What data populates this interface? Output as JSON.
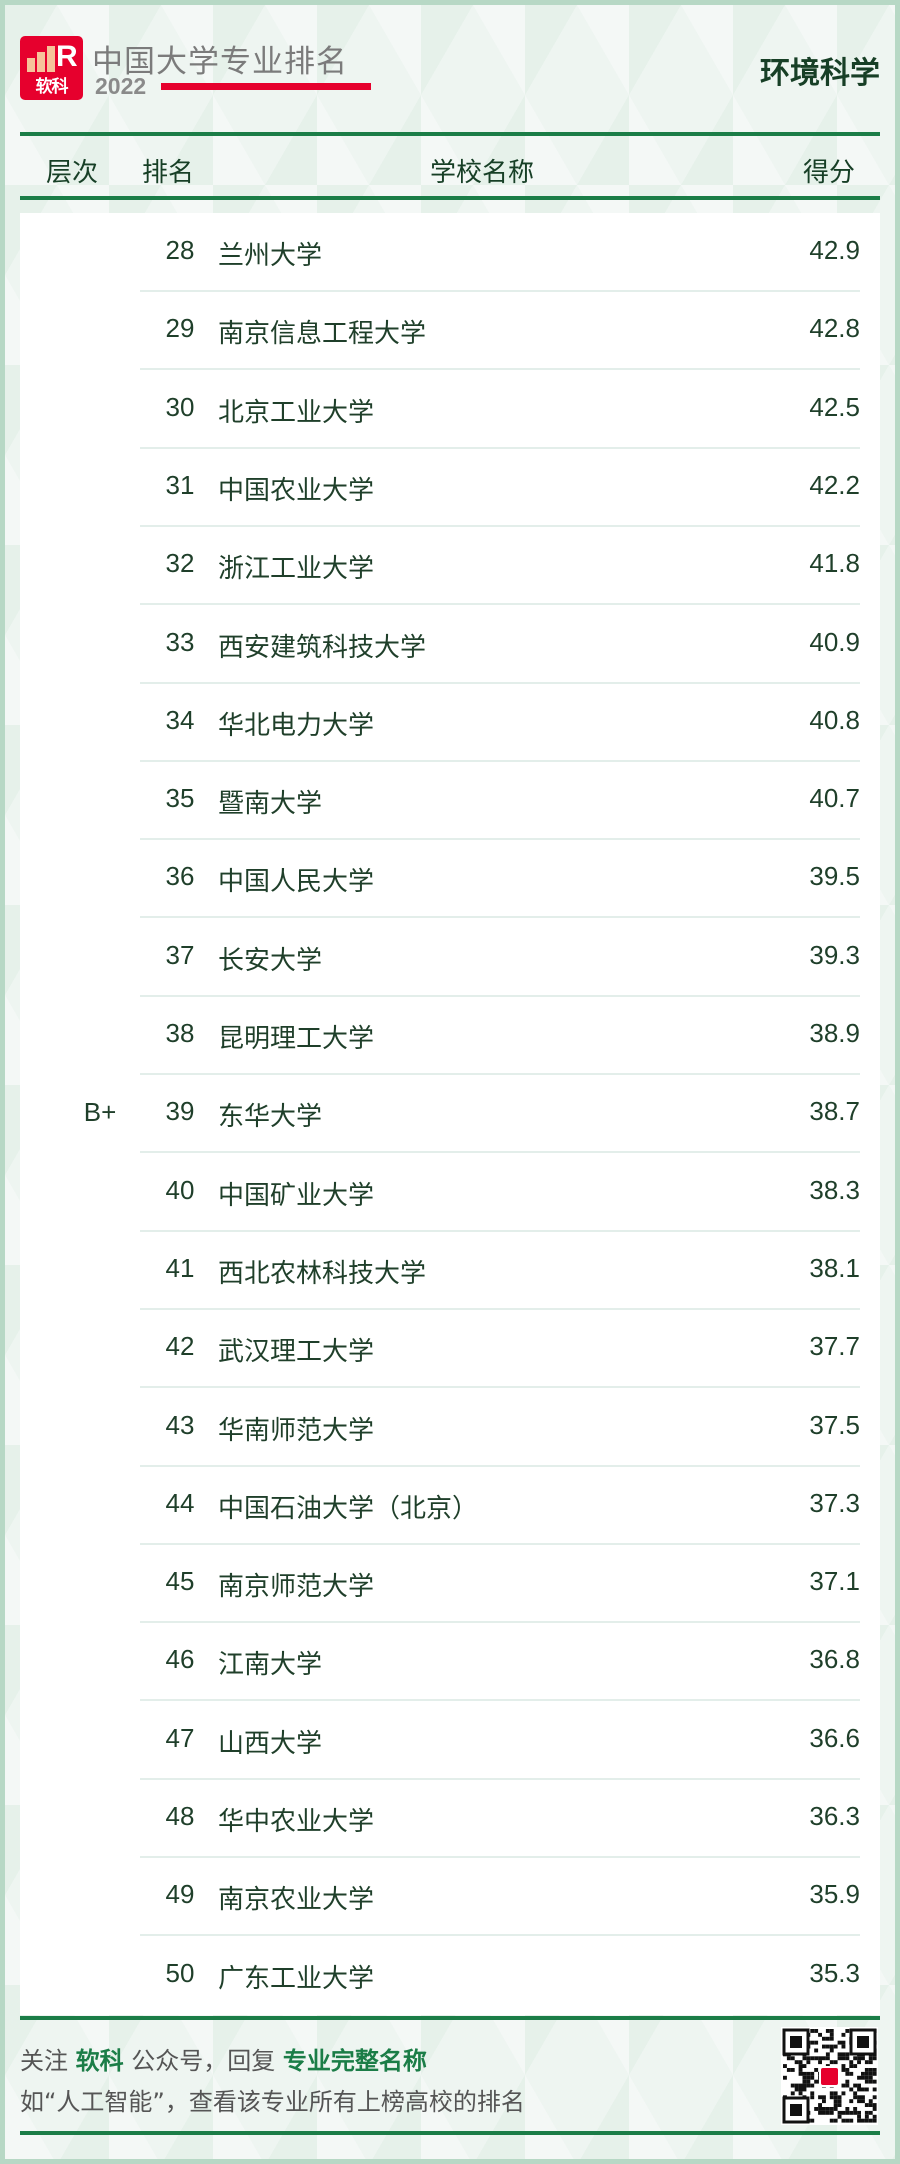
{
  "header": {
    "logo_text": "软科",
    "title": "中国大学专业排名",
    "year": "2022",
    "major": "环境科学"
  },
  "columns": {
    "tier": "层次",
    "rank": "排名",
    "school": "学校名称",
    "score": "得分"
  },
  "tier": "B+",
  "rows": [
    {
      "rank": "28",
      "name": "兰州大学",
      "score": "42.9"
    },
    {
      "rank": "29",
      "name": "南京信息工程大学",
      "score": "42.8"
    },
    {
      "rank": "30",
      "name": "北京工业大学",
      "score": "42.5"
    },
    {
      "rank": "31",
      "name": "中国农业大学",
      "score": "42.2"
    },
    {
      "rank": "32",
      "name": "浙江工业大学",
      "score": "41.8"
    },
    {
      "rank": "33",
      "name": "西安建筑科技大学",
      "score": "40.9"
    },
    {
      "rank": "34",
      "name": "华北电力大学",
      "score": "40.8"
    },
    {
      "rank": "35",
      "name": "暨南大学",
      "score": "40.7"
    },
    {
      "rank": "36",
      "name": "中国人民大学",
      "score": "39.5"
    },
    {
      "rank": "37",
      "name": "长安大学",
      "score": "39.3"
    },
    {
      "rank": "38",
      "name": "昆明理工大学",
      "score": "38.9"
    },
    {
      "rank": "39",
      "name": "东华大学",
      "score": "38.7"
    },
    {
      "rank": "40",
      "name": "中国矿业大学",
      "score": "38.3"
    },
    {
      "rank": "41",
      "name": "西北农林科技大学",
      "score": "38.1"
    },
    {
      "rank": "42",
      "name": "武汉理工大学",
      "score": "37.7"
    },
    {
      "rank": "43",
      "name": "华南师范大学",
      "score": "37.5"
    },
    {
      "rank": "44",
      "name": "中国石油大学（北京）",
      "score": "37.3"
    },
    {
      "rank": "45",
      "name": "南京师范大学",
      "score": "37.1"
    },
    {
      "rank": "46",
      "name": "江南大学",
      "score": "36.8"
    },
    {
      "rank": "47",
      "name": "山西大学",
      "score": "36.6"
    },
    {
      "rank": "48",
      "name": "华中农业大学",
      "score": "36.3"
    },
    {
      "rank": "49",
      "name": "南京农业大学",
      "score": "35.9"
    },
    {
      "rank": "50",
      "name": "广东工业大学",
      "score": "35.3"
    }
  ],
  "footer": {
    "line1": {
      "a": "关注 ",
      "b": "软科",
      "c": " 公众号，回复 ",
      "d": "专业完整名称"
    },
    "line2": "如“人工智能”，查看该专业所有上榜高校的排名"
  },
  "colors": {
    "accent_green": "#1b7d47",
    "brand_red": "#e6002d",
    "text": "#1f3f2a"
  },
  "icons": {
    "qr": "qr-code-icon",
    "logo": "ruanke-logo"
  }
}
